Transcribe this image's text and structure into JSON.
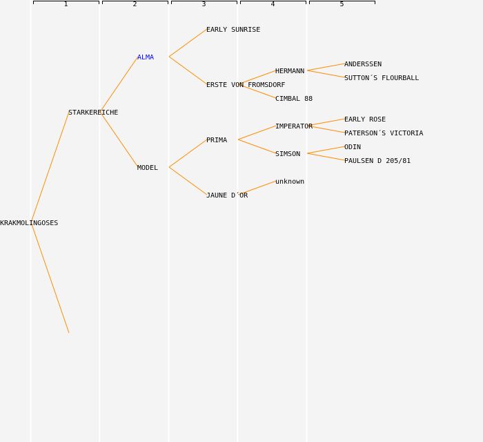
{
  "colors": {
    "line": "#ff8c00",
    "text": "#000000",
    "highlight": "#0000ff",
    "background": "#f4f4f4",
    "separator": "#ffffff"
  },
  "generation_headers": [
    "1",
    "2",
    "3",
    "4",
    "5"
  ],
  "tree": {
    "name": "KRAKMOLINGOSES",
    "children": [
      {
        "name": "STARKEREICHE",
        "children": [
          {
            "name": "ALMA",
            "highlight": true,
            "children": [
              {
                "name": "EARLY SUNRISE"
              },
              {
                "name": "ERSTE VON FROMSDORF",
                "children": [
                  {
                    "name": "HERMANN",
                    "children": [
                      {
                        "name": "ANDERSSEN"
                      },
                      {
                        "name": "SUTTON´S FLOURBALL"
                      }
                    ]
                  },
                  {
                    "name": "CIMBAL 88"
                  }
                ]
              }
            ]
          },
          {
            "name": "MODEL",
            "children": [
              {
                "name": "PRIMA",
                "children": [
                  {
                    "name": "IMPERATOR",
                    "children": [
                      {
                        "name": "EARLY ROSE"
                      },
                      {
                        "name": "PATERSON´S VICTORIA"
                      }
                    ]
                  },
                  {
                    "name": "SIMSON",
                    "children": [
                      {
                        "name": "ODIN"
                      },
                      {
                        "name": "PAULSEN D 205/81"
                      }
                    ]
                  }
                ]
              },
              {
                "name": "JAUNE D´OR",
                "children": [
                  {
                    "name": "unknown"
                  },
                  null
                ]
              }
            ]
          }
        ]
      },
      {
        "name": ""
      }
    ]
  }
}
